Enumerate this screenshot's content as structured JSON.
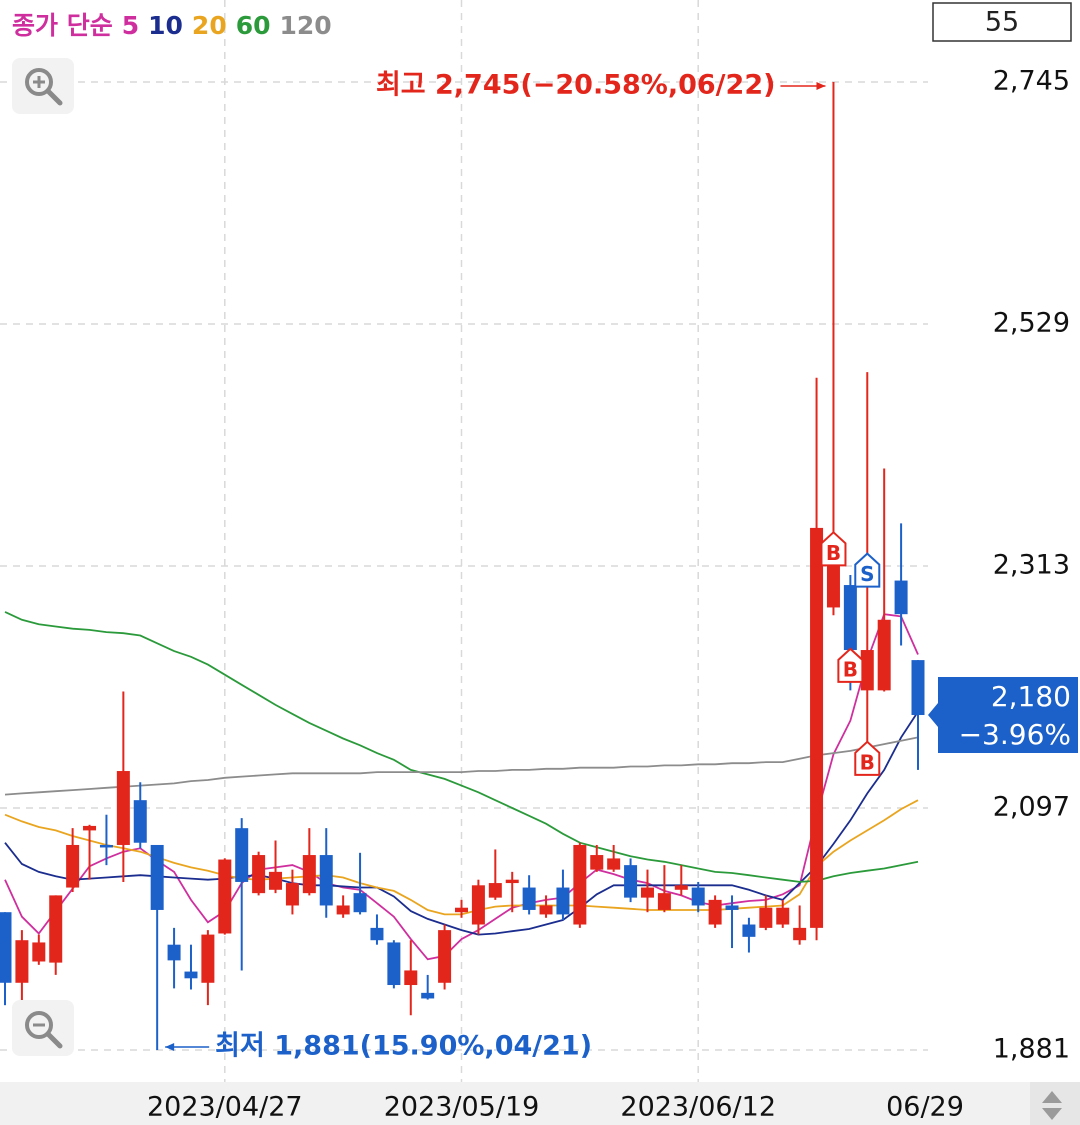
{
  "chart_data": {
    "type": "candlestick",
    "legend_title": "종가 단순",
    "visible_count": 55,
    "categories": [
      null,
      null,
      null,
      null,
      null,
      null,
      null,
      null,
      null,
      null,
      null,
      null,
      null,
      "2023/04/27",
      null,
      null,
      null,
      null,
      null,
      null,
      null,
      null,
      null,
      null,
      null,
      null,
      null,
      "2023/05/19",
      null,
      null,
      null,
      null,
      null,
      null,
      null,
      null,
      null,
      null,
      null,
      null,
      null,
      "2023/06/12",
      null,
      null,
      null,
      null,
      null,
      null,
      null,
      null,
      null,
      null,
      null,
      null,
      "06/29"
    ],
    "ohlc": {
      "open": [
        2004,
        1941,
        1960,
        1959,
        2026,
        2077,
        2064,
        2064,
        2104,
        2064,
        1975,
        1951,
        1941,
        1985,
        2079,
        2021,
        2024,
        2010,
        2021,
        2055,
        2002,
        2021,
        1990,
        1977,
        1939,
        1932,
        1941,
        2004,
        1993,
        2017,
        2030,
        2026,
        2002,
        2026,
        1993,
        2042,
        2042,
        2046,
        2017,
        2006,
        2024,
        2026,
        1993,
        2010,
        1993,
        1990,
        1993,
        1979,
        1990,
        2276,
        2296,
        2202,
        2202,
        2300,
        2229
      ],
      "high": [
        2004,
        1988,
        1984,
        2019,
        2079,
        2082,
        2091,
        2201,
        2120,
        2064,
        1990,
        1975,
        1988,
        2052,
        2088,
        2058,
        2068,
        2042,
        2079,
        2079,
        2019,
        2057,
        2002,
        1979,
        1979,
        1948,
        1993,
        2015,
        2033,
        2060,
        2040,
        2037,
        2019,
        2042,
        2066,
        2064,
        2064,
        2052,
        2042,
        2046,
        2046,
        2031,
        2019,
        2019,
        1999,
        2019,
        2015,
        2010,
        2481,
        2745,
        2305,
        2486,
        2400,
        2351,
        2229
      ],
      "low": [
        1921,
        1912,
        1957,
        1948,
        2022,
        2033,
        2046,
        2031,
        2061,
        1881,
        1936,
        1935,
        1921,
        1984,
        1952,
        2019,
        2021,
        2002,
        2019,
        1999,
        1999,
        2002,
        1975,
        1936,
        1912,
        1926,
        1935,
        1999,
        1984,
        2015,
        2004,
        2002,
        1999,
        1997,
        1990,
        2040,
        2040,
        2013,
        2004,
        2004,
        2019,
        2004,
        1990,
        1972,
        1968,
        1988,
        1990,
        1975,
        1979,
        2269,
        2202,
        2131,
        2201,
        2242,
        2131
      ],
      "close": [
        1941,
        1979,
        1977,
        2019,
        2064,
        2081,
        2063,
        2130,
        2066,
        2006,
        1961,
        1945,
        1984,
        2051,
        2031,
        2055,
        2040,
        2030,
        2055,
        2010,
        2010,
        2004,
        1979,
        1939,
        1952,
        1927,
        1988,
        2008,
        2028,
        2030,
        2033,
        2006,
        2010,
        2002,
        2064,
        2055,
        2052,
        2017,
        2026,
        2021,
        2028,
        2010,
        2015,
        2006,
        1982,
        2008,
        2008,
        1990,
        2347,
        2336,
        2238,
        2238,
        2265,
        2270,
        2180
      ]
    },
    "up_color": "#e3261c",
    "down_color": "#1c61c9",
    "moving_averages": [
      {
        "name": "5",
        "color": "#cf2f9e",
        "values": [
          2033,
          2000,
          1985,
          2005,
          2025,
          2045,
          2052,
          2058,
          2061,
          2050,
          2040,
          2015,
          1995,
          2005,
          2030,
          2042,
          2044,
          2046,
          2040,
          2030,
          2026,
          2024,
          2012,
          2000,
          1980,
          1962,
          1965,
          1980,
          1988,
          1998,
          2008,
          2012,
          2015,
          2017,
          2030,
          2042,
          2038,
          2033,
          2030,
          2023,
          2019,
          2013,
          2010,
          2012,
          2014,
          2015,
          2020,
          2028,
          2090,
          2145,
          2175,
          2229,
          2270,
          2268,
          2234
        ]
      },
      {
        "name": "10",
        "color": "#1b2d8e",
        "values": [
          2066,
          2047,
          2040,
          2036,
          2033,
          2034,
          2035,
          2036,
          2037,
          2036,
          2035,
          2034,
          2033,
          2034,
          2036,
          2037,
          2034,
          2030,
          2028,
          2028,
          2027,
          2026,
          2026,
          2018,
          2005,
          1998,
          1993,
          1988,
          1984,
          1985,
          1987,
          1989,
          1993,
          1997,
          2008,
          2020,
          2028,
          2028,
          2028,
          2028,
          2028,
          2028,
          2028,
          2028,
          2024,
          2019,
          2015,
          2030,
          2045,
          2065,
          2086,
          2110,
          2131,
          2160,
          2183
        ]
      },
      {
        "name": "20",
        "color": "#e9a51f",
        "values": [
          2091,
          2085,
          2080,
          2077,
          2072,
          2068,
          2064,
          2061,
          2058,
          2053,
          2048,
          2044,
          2041,
          2037,
          2034,
          2033,
          2034,
          2035,
          2036,
          2037,
          2035,
          2030,
          2026,
          2023,
          2015,
          2006,
          2002,
          2002,
          2006,
          2009,
          2010,
          2010,
          2010,
          2010,
          2010,
          2009,
          2008,
          2007,
          2006,
          2006,
          2006,
          2006,
          2006,
          2007,
          2008,
          2009,
          2010,
          2020,
          2045,
          2058,
          2068,
          2077,
          2086,
          2096,
          2104
        ]
      },
      {
        "name": "60",
        "color": "#2b9a3b",
        "values": [
          2272,
          2265,
          2261,
          2259,
          2257,
          2256,
          2254,
          2253,
          2251,
          2244,
          2237,
          2232,
          2225,
          2216,
          2207,
          2198,
          2189,
          2181,
          2173,
          2166,
          2159,
          2153,
          2146,
          2140,
          2131,
          2127,
          2123,
          2117,
          2111,
          2104,
          2097,
          2090,
          2083,
          2074,
          2066,
          2062,
          2058,
          2054,
          2051,
          2049,
          2046,
          2043,
          2040,
          2039,
          2037,
          2035,
          2033,
          2031,
          2032,
          2036,
          2039,
          2041,
          2043,
          2046,
          2049
        ]
      },
      {
        "name": "120",
        "color": "#8c8c8c",
        "values": [
          2109,
          2110,
          2111,
          2112,
          2113,
          2114,
          2115,
          2116,
          2117,
          2118,
          2119,
          2121,
          2122,
          2124,
          2125,
          2126,
          2127,
          2128,
          2128,
          2128,
          2128,
          2128,
          2129,
          2129,
          2129,
          2129,
          2129,
          2129,
          2130,
          2130,
          2131,
          2131,
          2132,
          2132,
          2133,
          2133,
          2133,
          2134,
          2134,
          2135,
          2135,
          2136,
          2136,
          2137,
          2137,
          2138,
          2138,
          2141,
          2144,
          2146,
          2148,
          2151,
          2154,
          2157,
          2160
        ]
      }
    ],
    "signals": [
      null,
      null,
      null,
      null,
      null,
      null,
      null,
      null,
      null,
      null,
      null,
      null,
      null,
      null,
      null,
      null,
      null,
      null,
      null,
      null,
      null,
      null,
      null,
      null,
      null,
      null,
      null,
      null,
      null,
      null,
      null,
      null,
      null,
      null,
      null,
      null,
      null,
      null,
      null,
      null,
      null,
      null,
      null,
      null,
      null,
      null,
      null,
      null,
      null,
      [
        {
          "label": "B",
          "price": 2327,
          "color": "#e3261c"
        }
      ],
      [
        {
          "label": "B",
          "price": 2223,
          "color": "#e3261c"
        }
      ],
      [
        {
          "label": "S",
          "price": 2308,
          "color": "#1c61c9"
        },
        {
          "label": "B",
          "price": 2140,
          "color": "#e3261c"
        }
      ],
      null,
      null,
      null
    ],
    "annotations": [
      {
        "text": "최고 2,745(−20.58%,06/22)",
        "value": 2745,
        "color": "#e3261c"
      },
      {
        "text": "최저 1,881(15.90%,04/21)",
        "value": 1881,
        "color": "#1c61c9"
      }
    ],
    "last_tag": {
      "value": 2180,
      "label": "2,180",
      "change": "−3.96%",
      "color": "#1c61c9"
    },
    "ylim": [
      1881,
      2745
    ],
    "yticks": [
      {
        "value": 1881,
        "label": "1,881"
      },
      {
        "value": 2097,
        "label": "2,097"
      },
      {
        "value": 2313,
        "label": "2,313"
      },
      {
        "value": 2529,
        "label": "2,529"
      },
      {
        "value": 2745,
        "label": "2,745"
      }
    ],
    "grid": true
  }
}
